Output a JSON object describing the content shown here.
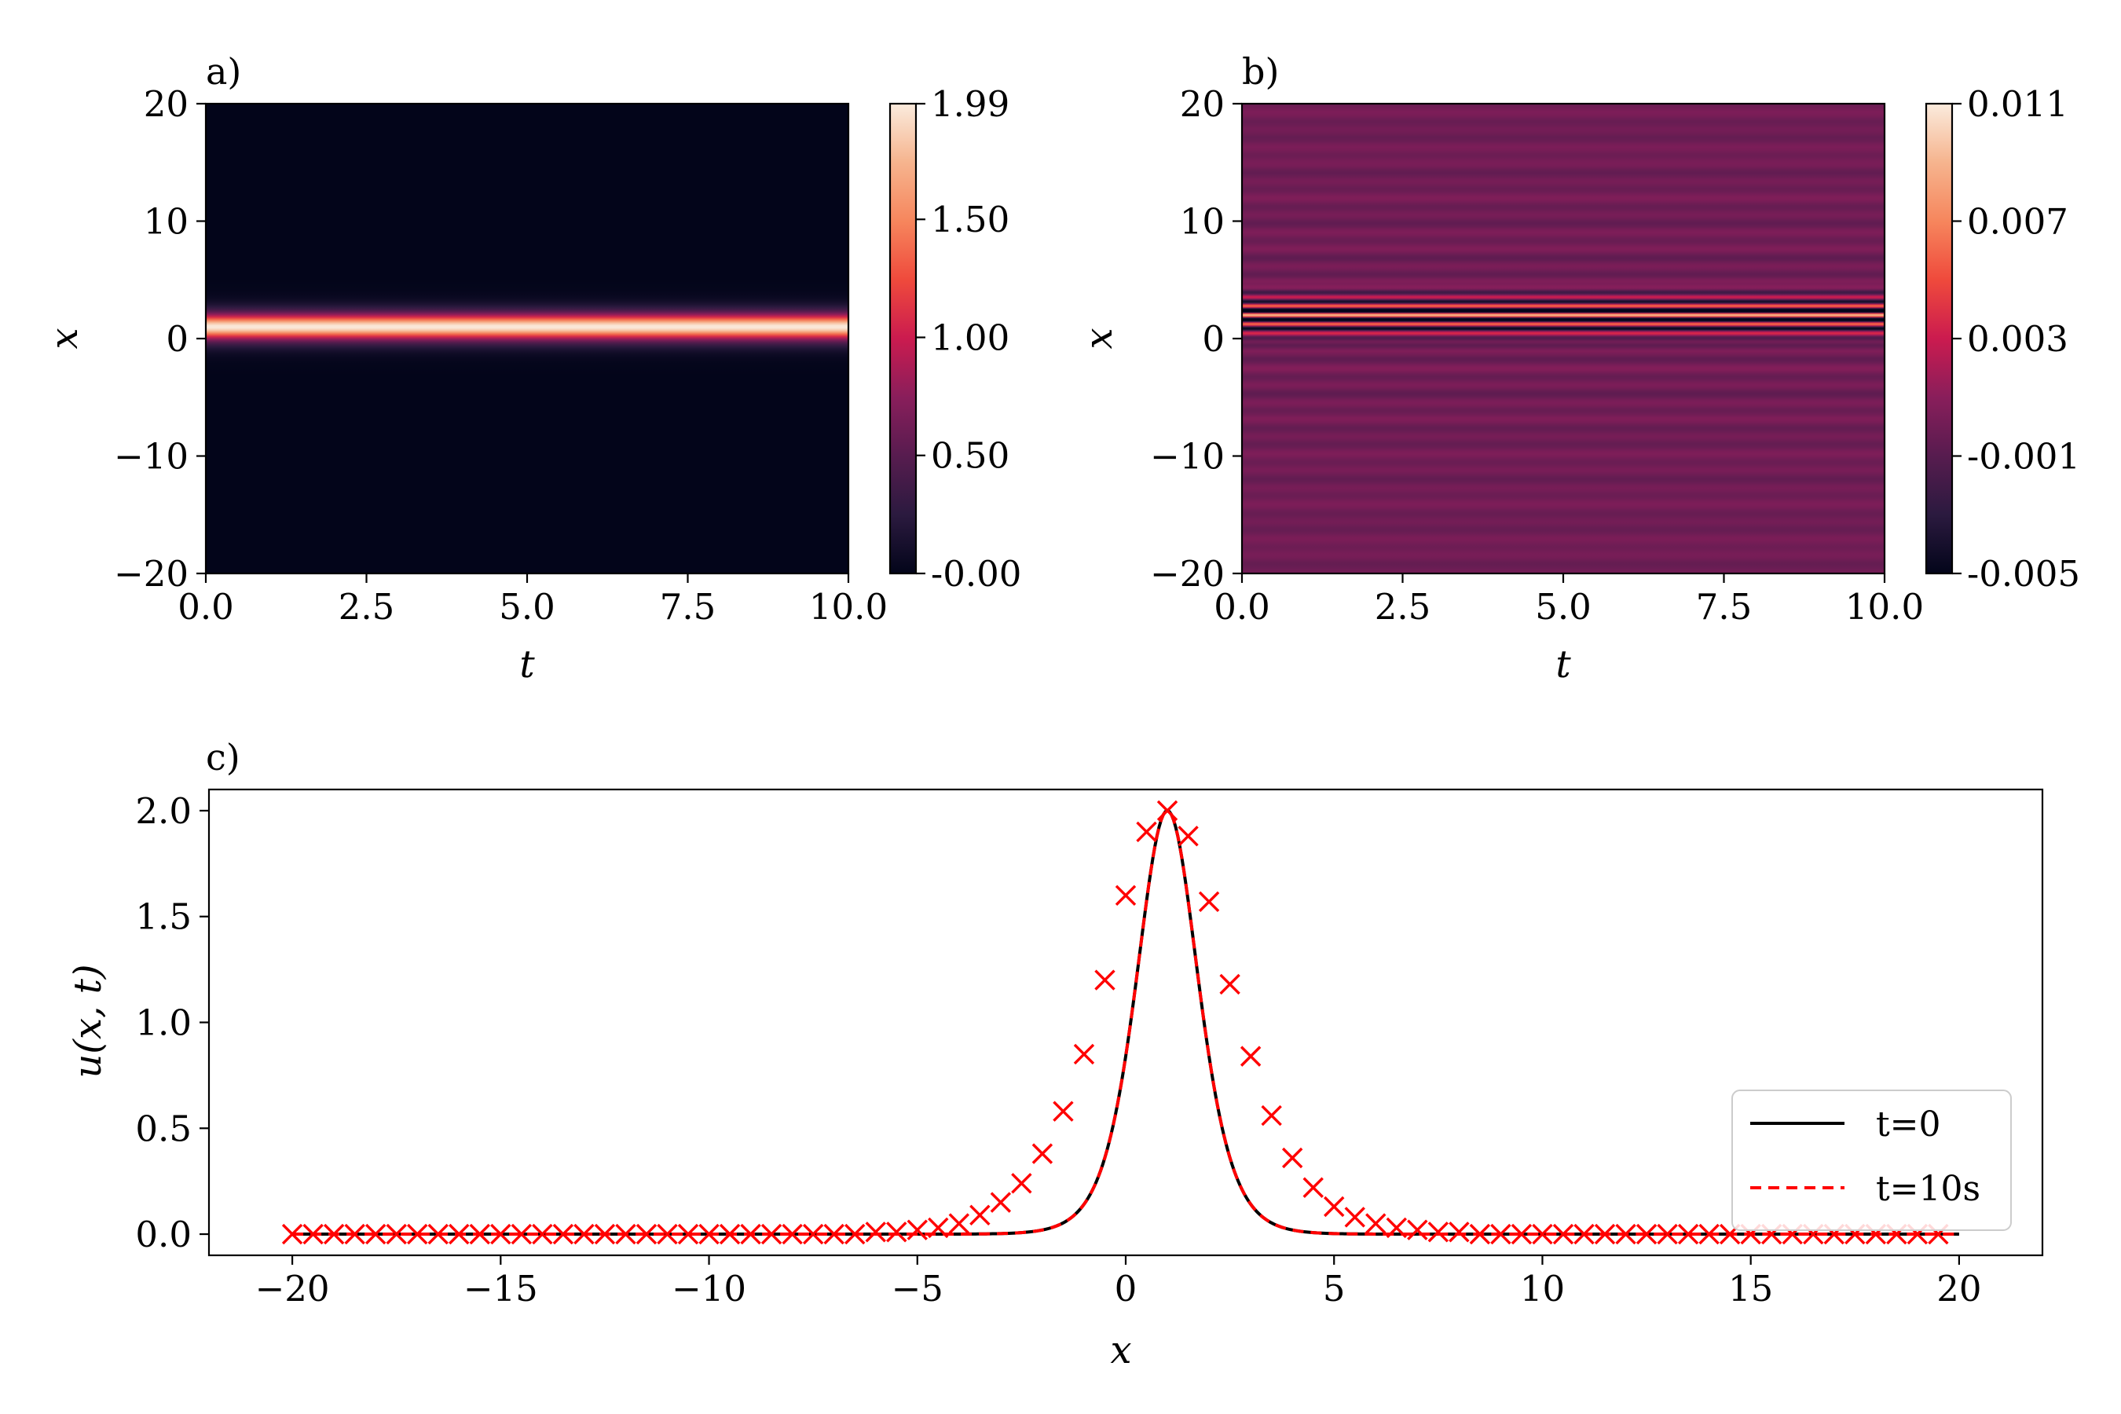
{
  "chart_data": [
    {
      "panel": "a)",
      "type": "heatmap",
      "xlabel": "t",
      "ylabel": "x",
      "xlim": [
        0.0,
        10.0
      ],
      "ylim": [
        -20,
        20
      ],
      "x_ticks": [
        "0.0",
        "2.5",
        "5.0",
        "7.5",
        "10.0"
      ],
      "y_ticks": [
        "20",
        "10",
        "0",
        "−10",
        "−20"
      ],
      "colorbar_ticks": [
        "1.99",
        "1.50",
        "1.00",
        "0.50",
        "-0.00"
      ],
      "colorbar_range": [
        -0.0,
        1.99
      ],
      "colormap": "rocket",
      "field": {
        "form": "2 sech^2(x - 1), constant in t",
        "amplitude": 1.99,
        "center_x": 1.0
      }
    },
    {
      "panel": "b)",
      "type": "heatmap",
      "xlabel": "t",
      "ylabel": "x",
      "xlim": [
        0.0,
        10.0
      ],
      "ylim": [
        -20,
        20
      ],
      "x_ticks": [
        "0.0",
        "2.5",
        "5.0",
        "7.5",
        "10.0"
      ],
      "y_ticks": [
        "20",
        "10",
        "0",
        "−10",
        "−20"
      ],
      "colorbar_ticks": [
        "0.011",
        "0.007",
        "0.003",
        "-0.001",
        "-0.005"
      ],
      "colorbar_range": [
        -0.005,
        0.011
      ],
      "colormap": "rocket",
      "field": {
        "form": "small oscillating error bands, constant in t",
        "background": 0.0,
        "peak_near_x": 2.0
      }
    },
    {
      "panel": "c)",
      "type": "line",
      "xlabel": "x",
      "ylabel": "u(x, t)",
      "xlim": [
        -22,
        22
      ],
      "ylim": [
        -0.1,
        2.1
      ],
      "x_ticks": [
        "−20",
        "−15",
        "−10",
        "−5",
        "0",
        "5",
        "10",
        "15",
        "20"
      ],
      "y_ticks": [
        "0.0",
        "0.5",
        "1.0",
        "1.5",
        "2.0"
      ],
      "legend_position": "lower-right",
      "series": [
        {
          "name": "t=0",
          "style": "solid",
          "color": "#000000",
          "form": "2 sech^2(x - 1)",
          "x_range": [
            -20,
            20
          ]
        },
        {
          "name": "t=10s",
          "style": "dashed",
          "color": "#ff0000",
          "form": "2 sech^2(x - 1)",
          "x_range": [
            -20,
            20
          ]
        }
      ],
      "markers": {
        "shape": "x",
        "color": "#ff0000",
        "x": [
          -20.0,
          -19.5,
          -19.0,
          -18.5,
          -18.0,
          -17.5,
          -17.0,
          -16.5,
          -16.0,
          -15.5,
          -15.0,
          -14.5,
          -14.0,
          -13.5,
          -13.0,
          -12.5,
          -12.0,
          -11.5,
          -11.0,
          -10.5,
          -10.0,
          -9.5,
          -9.0,
          -8.5,
          -8.0,
          -7.5,
          -7.0,
          -6.5,
          -6.0,
          -5.5,
          -5.0,
          -4.5,
          -4.0,
          -3.5,
          -3.0,
          -2.5,
          -2.0,
          -1.5,
          -1.0,
          -0.5,
          0.0,
          0.5,
          1.0,
          1.5,
          2.0,
          2.5,
          3.0,
          3.5,
          4.0,
          4.5,
          5.0,
          5.5,
          6.0,
          6.5,
          7.0,
          7.5,
          8.0,
          8.5,
          9.0,
          9.5,
          10.0,
          10.5,
          11.0,
          11.5,
          12.0,
          12.5,
          13.0,
          13.5,
          14.0,
          14.5,
          15.0,
          15.5,
          16.0,
          16.5,
          17.0,
          17.5,
          18.0,
          18.5,
          19.0,
          19.5
        ],
        "y": [
          0.0,
          0.0,
          0.0,
          0.0,
          0.0,
          0.0,
          0.0,
          0.0,
          0.0,
          0.0,
          0.0,
          0.0,
          0.0,
          0.0,
          0.0,
          0.0,
          0.0,
          0.0,
          0.0,
          0.0,
          0.0,
          0.0,
          0.0,
          0.0,
          0.0,
          0.0,
          0.0,
          0.0,
          0.01,
          0.01,
          0.02,
          0.03,
          0.05,
          0.09,
          0.15,
          0.24,
          0.38,
          0.58,
          0.85,
          1.2,
          1.6,
          1.9,
          2.0,
          1.88,
          1.57,
          1.18,
          0.84,
          0.56,
          0.36,
          0.22,
          0.13,
          0.08,
          0.05,
          0.03,
          0.02,
          0.01,
          0.01,
          0.0,
          0.0,
          0.0,
          0.0,
          0.0,
          0.0,
          0.0,
          0.0,
          0.0,
          0.0,
          0.0,
          0.0,
          0.0,
          0.0,
          0.0,
          0.0,
          0.0,
          0.0,
          0.0,
          0.0,
          0.0,
          0.0,
          0.0
        ]
      }
    }
  ]
}
